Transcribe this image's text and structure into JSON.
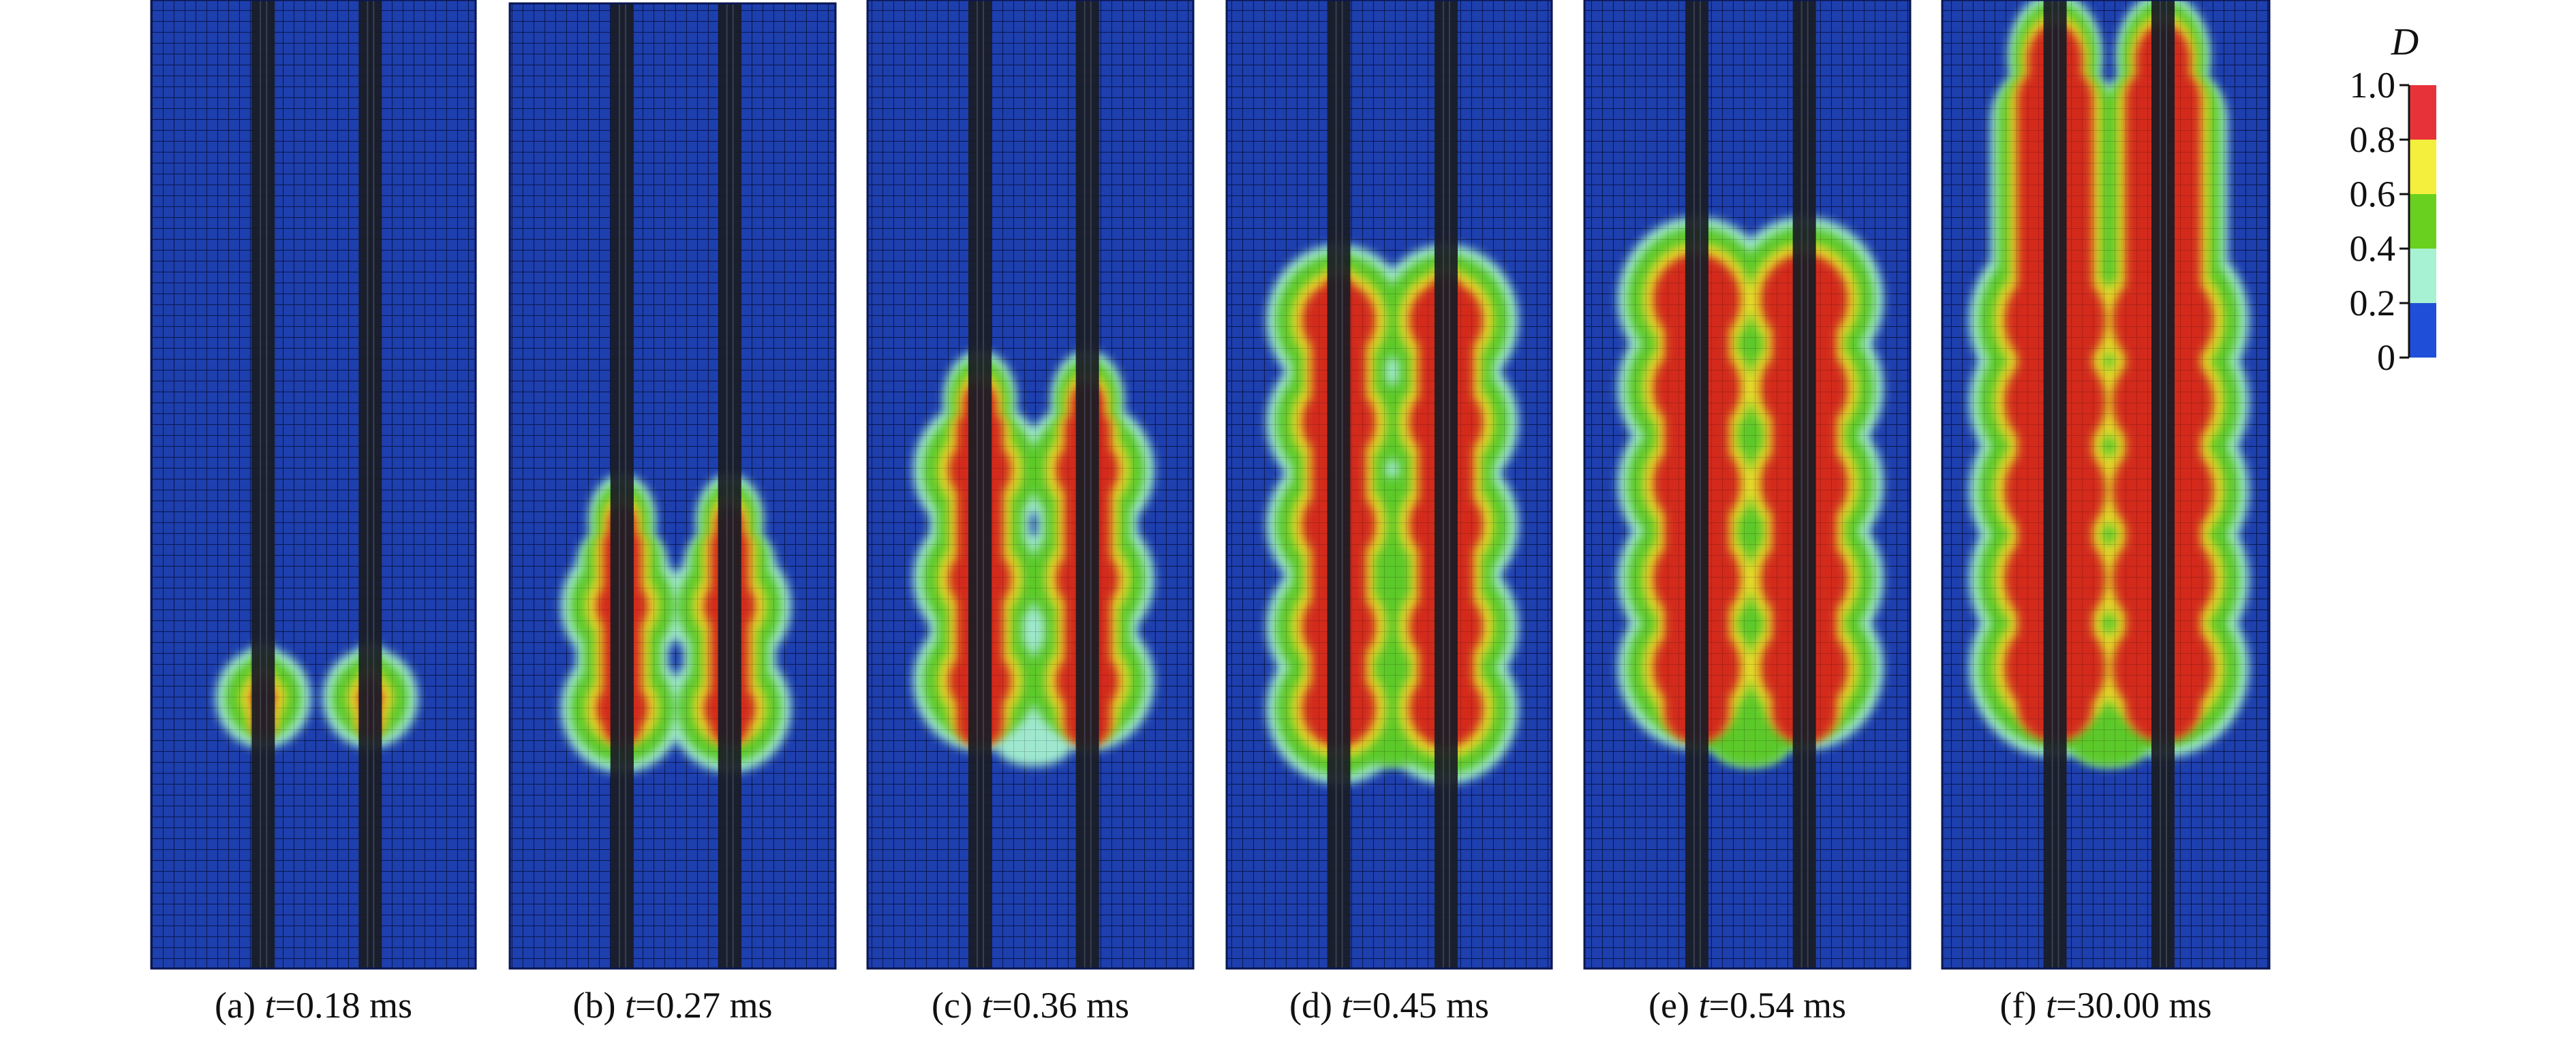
{
  "panels": [
    {
      "letter": "(a)",
      "var": "t",
      "eq": "=0.18 ms",
      "stage": 1
    },
    {
      "letter": "(b)",
      "var": "t",
      "eq": "=0.27 ms",
      "stage": 2
    },
    {
      "letter": "(c)",
      "var": "t",
      "eq": "=0.36 ms",
      "stage": 3
    },
    {
      "letter": "(d)",
      "var": "t",
      "eq": "=0.45 ms",
      "stage": 4
    },
    {
      "letter": "(e)",
      "var": "t",
      "eq": "=0.54 ms",
      "stage": 5
    },
    {
      "letter": "(f)",
      "var": "t",
      "eq": "=30.00 ms",
      "stage": 6
    }
  ],
  "colorbar": {
    "title": "D",
    "ticks": [
      "1.0",
      "0.8",
      "0.6",
      "0.4",
      "0.2",
      "0"
    ],
    "colors": {
      "band_1": "#e8323a",
      "band_2": "#f4ee3c",
      "band_3": "#6ad01f",
      "band_4": "#a6f2d2",
      "band_5": "#1f4fd8"
    }
  },
  "colors": {
    "mesh_bg": "#1e3fae",
    "mesh_line": "#0c1f66",
    "rod": "#191c24",
    "damage_red": "#d32a1f",
    "damage_yellow": "#e3d92a",
    "damage_green": "#5cc92c",
    "damage_cyan": "#9fe8cf"
  }
}
